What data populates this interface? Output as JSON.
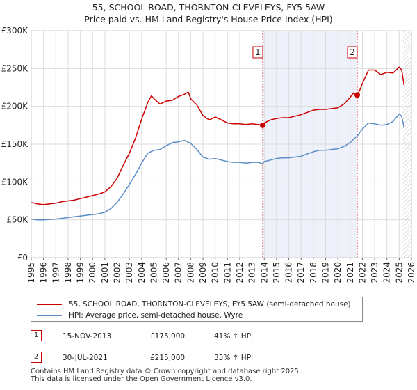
{
  "chart_data": {
    "type": "line",
    "title": "55, SCHOOL ROAD, THORNTON-CLEVELEYS, FY5 5AW",
    "subtitle": "Price paid vs. HM Land Registry's House Price Index (HPI)",
    "xlabel": "",
    "ylabel": "",
    "xlim": [
      1995,
      2026
    ],
    "ylim": [
      0,
      300000
    ],
    "yticks": [
      {
        "value": 0,
        "label": "£0"
      },
      {
        "value": 50000,
        "label": "£50K"
      },
      {
        "value": 100000,
        "label": "£100K"
      },
      {
        "value": 150000,
        "label": "£150K"
      },
      {
        "value": 200000,
        "label": "£200K"
      },
      {
        "value": 250000,
        "label": "£250K"
      },
      {
        "value": 300000,
        "label": "£300K"
      }
    ],
    "xticks": [
      "1995",
      "1996",
      "1997",
      "1998",
      "1999",
      "2000",
      "2001",
      "2002",
      "2003",
      "2004",
      "2005",
      "2006",
      "2007",
      "2008",
      "2009",
      "2010",
      "2011",
      "2012",
      "2013",
      "2014",
      "2015",
      "2016",
      "2017",
      "2018",
      "2019",
      "2020",
      "2021",
      "2022",
      "2023",
      "2024",
      "2025",
      "2026"
    ],
    "shaded_region": {
      "from": 2013.87,
      "to": 2021.58
    },
    "future_hatch_from": 2025.3,
    "series": [
      {
        "name": "55, SCHOOL ROAD, THORNTON-CLEVELEYS, FY5 5AW (semi-detached house)",
        "color": "#cc0000",
        "x": [
          1995.0,
          1995.5,
          1996.0,
          1996.5,
          1997.0,
          1997.5,
          1998.0,
          1998.5,
          1999.0,
          1999.5,
          2000.0,
          2000.5,
          2001.0,
          2001.5,
          2002.0,
          2002.5,
          2003.0,
          2003.5,
          2004.0,
          2004.5,
          2004.8,
          2005.0,
          2005.5,
          2006.0,
          2006.5,
          2007.0,
          2007.5,
          2007.8,
          2008.0,
          2008.5,
          2009.0,
          2009.5,
          2010.0,
          2010.5,
          2011.0,
          2011.5,
          2012.0,
          2012.5,
          2013.0,
          2013.5,
          2013.87,
          2014.0,
          2014.5,
          2015.0,
          2015.5,
          2016.0,
          2016.5,
          2017.0,
          2017.5,
          2018.0,
          2018.5,
          2019.0,
          2019.5,
          2020.0,
          2020.5,
          2021.0,
          2021.3,
          2021.58,
          2021.8,
          2022.0,
          2022.5,
          2023.0,
          2023.5,
          2024.0,
          2024.5,
          2025.0,
          2025.2,
          2025.4
        ],
        "values": [
          73000,
          71000,
          70000,
          71000,
          72000,
          74000,
          75000,
          76000,
          78000,
          80000,
          82000,
          84000,
          87000,
          94000,
          105000,
          122000,
          138000,
          158000,
          183000,
          205000,
          214000,
          210000,
          203000,
          207000,
          208000,
          213000,
          216000,
          219000,
          210000,
          202000,
          188000,
          182000,
          186000,
          182000,
          178000,
          177000,
          177000,
          176000,
          177000,
          176000,
          175000,
          178000,
          182000,
          184000,
          185000,
          185000,
          187000,
          189000,
          192000,
          195000,
          196000,
          196000,
          197000,
          198000,
          203000,
          212000,
          218000,
          215000,
          222000,
          230000,
          248000,
          248000,
          242000,
          245000,
          244000,
          252000,
          248000,
          228000
        ]
      },
      {
        "name": "HPI: Average price, semi-detached house, Wyre",
        "color": "#5b8cc8",
        "x": [
          1995.0,
          1995.5,
          1996.0,
          1996.5,
          1997.0,
          1997.5,
          1998.0,
          1998.5,
          1999.0,
          1999.5,
          2000.0,
          2000.5,
          2001.0,
          2001.5,
          2002.0,
          2002.5,
          2003.0,
          2003.5,
          2004.0,
          2004.5,
          2005.0,
          2005.5,
          2006.0,
          2006.5,
          2007.0,
          2007.5,
          2008.0,
          2008.5,
          2009.0,
          2009.5,
          2010.0,
          2010.5,
          2011.0,
          2011.5,
          2012.0,
          2012.5,
          2013.0,
          2013.5,
          2013.87,
          2014.0,
          2014.5,
          2015.0,
          2015.5,
          2016.0,
          2016.5,
          2017.0,
          2017.5,
          2018.0,
          2018.5,
          2019.0,
          2019.5,
          2020.0,
          2020.5,
          2021.0,
          2021.58,
          2022.0,
          2022.5,
          2023.0,
          2023.5,
          2024.0,
          2024.5,
          2025.0,
          2025.2,
          2025.4
        ],
        "values": [
          51000,
          50000,
          50000,
          50500,
          51000,
          52000,
          53000,
          54000,
          55000,
          56000,
          57000,
          58000,
          60000,
          65000,
          73000,
          84000,
          97000,
          110000,
          125000,
          138000,
          142000,
          143000,
          148000,
          152000,
          153000,
          155000,
          151000,
          143000,
          133000,
          130000,
          131000,
          129000,
          127000,
          126000,
          126000,
          125000,
          126000,
          126000,
          124000,
          127000,
          129000,
          131000,
          132000,
          132000,
          133000,
          134000,
          137000,
          140000,
          142000,
          142000,
          143000,
          144000,
          147000,
          152000,
          161000,
          170000,
          178000,
          177000,
          175000,
          176000,
          180000,
          190000,
          187000,
          172000
        ]
      }
    ],
    "annotations": [
      {
        "label": "1",
        "x": 2013.87,
        "y": 175000
      },
      {
        "label": "2",
        "x": 2021.58,
        "y": 215000
      }
    ]
  },
  "legend": {
    "red_label": "55, SCHOOL ROAD, THORNTON-CLEVELEYS, FY5 5AW (semi-detached house)",
    "blue_label": "HPI: Average price, semi-detached house, Wyre"
  },
  "sales": [
    {
      "num": "1",
      "date": "15-NOV-2013",
      "price": "£175,000",
      "hpi": "41% ↑ HPI"
    },
    {
      "num": "2",
      "date": "30-JUL-2021",
      "price": "£215,000",
      "hpi": "33% ↑ HPI"
    }
  ],
  "footer": {
    "line1": "Contains HM Land Registry data © Crown copyright and database right 2025.",
    "line2": "This data is licensed under the Open Government Licence v3.0."
  },
  "colors": {
    "red": "#cc0000",
    "blue": "#5b8cc8",
    "shade": "#eef0fa",
    "grid": "#dddddd"
  }
}
